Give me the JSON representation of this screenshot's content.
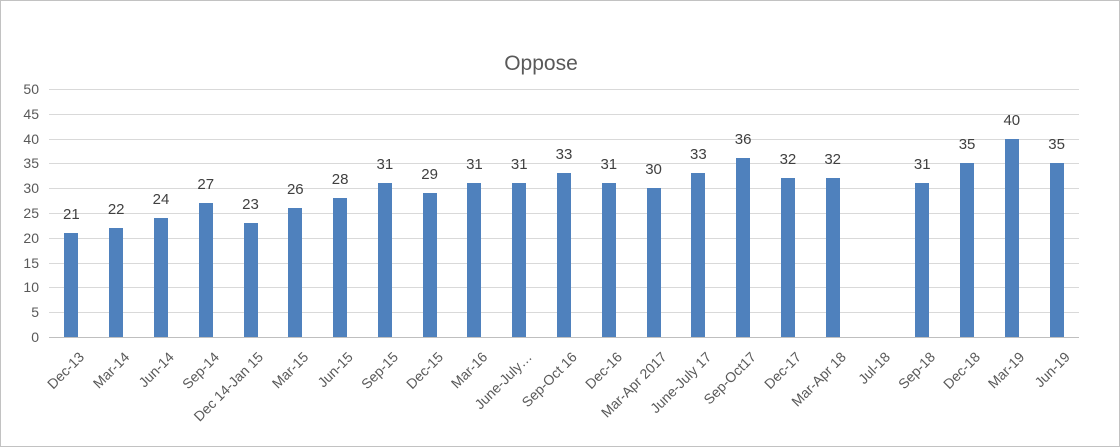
{
  "chart_data": {
    "type": "bar",
    "title": "Oppose",
    "categories": [
      "Dec-13",
      "Mar-14",
      "Jun-14",
      "Sep-14",
      "Dec 14-Jan 15",
      "Mar-15",
      "Jun-15",
      "Sep-15",
      "Dec-15",
      "Mar-16",
      "June-July…",
      "Sep-Oct 16",
      "Dec-16",
      "Mar-Apr 2017",
      "June-July 17",
      "Sep-Oct17",
      "Dec-17",
      "Mar-Apr 18",
      "Jul-18",
      "Sep-18",
      "Dec-18",
      "Mar-19",
      "Jun-19"
    ],
    "values": [
      21,
      22,
      24,
      27,
      23,
      26,
      28,
      31,
      29,
      31,
      31,
      33,
      31,
      30,
      33,
      36,
      32,
      32,
      null,
      31,
      35,
      40,
      35
    ],
    "xlabel": "",
    "ylabel": "",
    "ylim": [
      0,
      50
    ],
    "ytick_step": 5,
    "ytick_labels": [
      "0",
      "5",
      "10",
      "15",
      "20",
      "25",
      "30",
      "35",
      "40",
      "45",
      "50"
    ],
    "grid": true,
    "legend": "none",
    "data_labels_position": "outside-end",
    "x_label_rotation_deg": -45,
    "colors": {
      "bar": "#4f81bd",
      "gridline": "#d9d9d9",
      "axis_line": "#bfbfbf",
      "title": "#595959",
      "axis_labels": "#595959",
      "data_labels": "#404040",
      "background": "#ffffff",
      "frame_border": "#c2c2c2"
    }
  }
}
